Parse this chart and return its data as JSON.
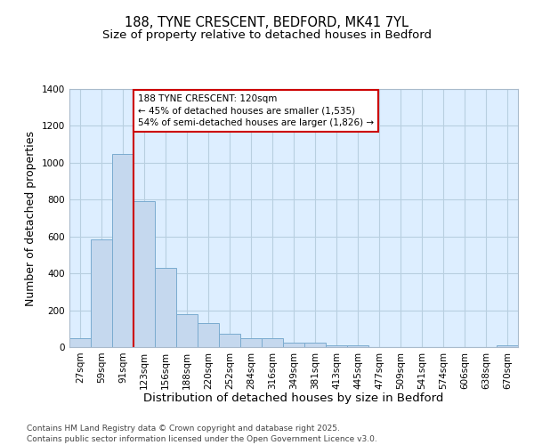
{
  "title_line1": "188, TYNE CRESCENT, BEDFORD, MK41 7YL",
  "title_line2": "Size of property relative to detached houses in Bedford",
  "xlabel": "Distribution of detached houses by size in Bedford",
  "ylabel": "Number of detached properties",
  "categories": [
    "27sqm",
    "59sqm",
    "91sqm",
    "123sqm",
    "156sqm",
    "188sqm",
    "220sqm",
    "252sqm",
    "284sqm",
    "316sqm",
    "349sqm",
    "381sqm",
    "413sqm",
    "445sqm",
    "477sqm",
    "509sqm",
    "541sqm",
    "574sqm",
    "606sqm",
    "638sqm",
    "670sqm"
  ],
  "values": [
    48,
    585,
    1048,
    793,
    432,
    180,
    128,
    72,
    50,
    50,
    25,
    22,
    10,
    8,
    0,
    0,
    0,
    0,
    0,
    0,
    10
  ],
  "bar_color": "#c5d8ee",
  "bar_edge_color": "#7aabcf",
  "grid_color": "#b8cfe0",
  "background_color": "#ddeeff",
  "vline_color": "#cc0000",
  "annotation_text": "188 TYNE CRESCENT: 120sqm\n← 45% of detached houses are smaller (1,535)\n54% of semi-detached houses are larger (1,826) →",
  "annotation_box_color": "#cc0000",
  "ylim": [
    0,
    1400
  ],
  "yticks": [
    0,
    200,
    400,
    600,
    800,
    1000,
    1200,
    1400
  ],
  "footer_text": "Contains HM Land Registry data © Crown copyright and database right 2025.\nContains public sector information licensed under the Open Government Licence v3.0.",
  "title_fontsize": 10.5,
  "subtitle_fontsize": 9.5,
  "axis_label_fontsize": 9,
  "tick_fontsize": 7.5,
  "annotation_fontsize": 7.5,
  "footer_fontsize": 6.5
}
